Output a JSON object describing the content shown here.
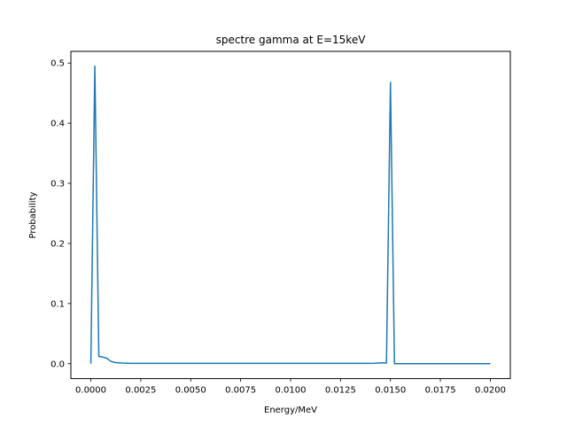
{
  "chart_data": {
    "type": "line",
    "title": "spectre gamma at E=15keV",
    "xlabel": "Energy/MeV",
    "ylabel": "Probability",
    "xlim": [
      -0.001,
      0.021
    ],
    "ylim": [
      -0.0248,
      0.5195
    ],
    "xticks": [
      "0.0000",
      "0.0025",
      "0.0050",
      "0.0075",
      "0.0100",
      "0.0125",
      "0.0150",
      "0.0175",
      "0.0200"
    ],
    "xtick_values": [
      0.0,
      0.0025,
      0.005,
      0.0075,
      0.01,
      0.0125,
      0.015,
      0.0175,
      0.02
    ],
    "yticks": [
      "0.0",
      "0.1",
      "0.2",
      "0.3",
      "0.4",
      "0.5"
    ],
    "ytick_values": [
      0.0,
      0.1,
      0.2,
      0.3,
      0.4,
      0.5
    ],
    "grid": false,
    "series_color": "#1f77b4",
    "x": [
      0.0,
      0.0002,
      0.0004,
      0.0006,
      0.0008,
      0.001,
      0.0012,
      0.0014,
      0.0016,
      0.0018,
      0.002,
      0.004,
      0.006,
      0.008,
      0.01,
      0.012,
      0.014,
      0.0142,
      0.0144,
      0.0146,
      0.0148,
      0.015,
      0.0152,
      0.0154,
      0.017,
      0.019,
      0.02
    ],
    "y": [
      0.0,
      0.495,
      0.012,
      0.011,
      0.009,
      0.004,
      0.002,
      0.0015,
      0.001,
      0.0008,
      0.0006,
      0.0005,
      0.0005,
      0.0005,
      0.0005,
      0.0005,
      0.0006,
      0.0008,
      0.0012,
      0.0015,
      0.0012,
      0.468,
      0.0,
      0.0,
      0.0,
      0.0,
      0.0
    ]
  }
}
